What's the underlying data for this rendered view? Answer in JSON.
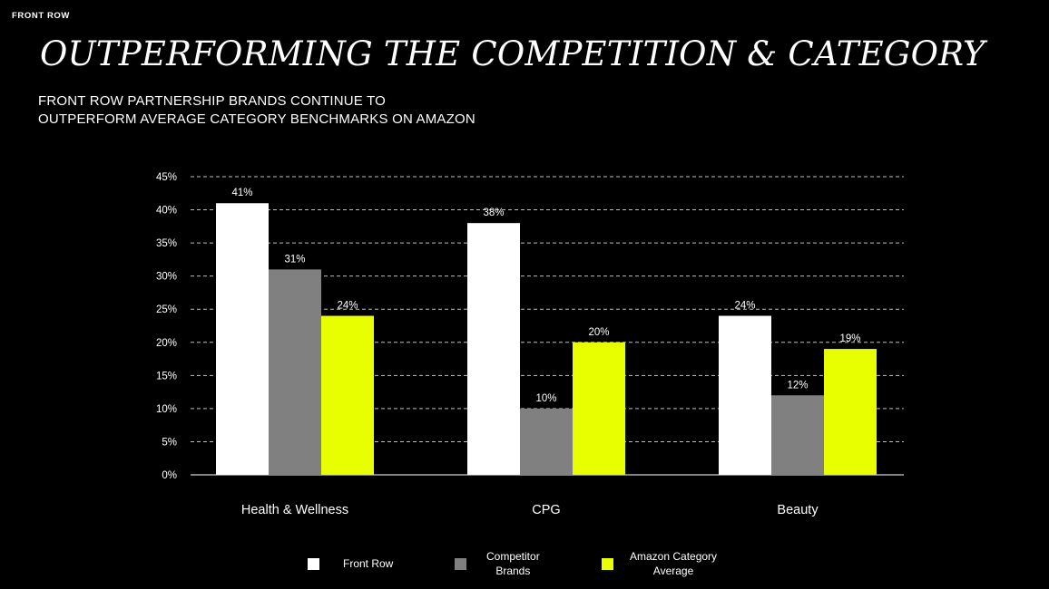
{
  "brand": "FRONT ROW",
  "title": "OUTPERFORMING THE COMPETITION & CATEGORY",
  "subtitle_lines": [
    "FRONT ROW PARTNERSHIP BRANDS CONTINUE TO",
    "OUTPERFORM AVERAGE CATEGORY BENCHMARKS ON AMAZON"
  ],
  "colors": {
    "front_row": "#ffffff",
    "competitor": "#808080",
    "amazon": "#e8ff00",
    "background": "#000000"
  },
  "chart_data": {
    "type": "bar",
    "categories": [
      "Health & Wellness",
      "CPG",
      "Beauty"
    ],
    "series": [
      {
        "name": "Front Row",
        "values": [
          41,
          38,
          24
        ],
        "labels": [
          "41%",
          "38%",
          "24%"
        ]
      },
      {
        "name": "Competitor Brands",
        "values": [
          31,
          10,
          12
        ],
        "labels": [
          "31%",
          "10%",
          "12%"
        ]
      },
      {
        "name": "Amazon Category Average",
        "values": [
          24,
          20,
          19
        ],
        "labels": [
          "24%",
          "20%",
          "19%"
        ]
      }
    ],
    "yticks": [
      "0%",
      "5%",
      "10%",
      "15%",
      "20%",
      "25%",
      "30%",
      "35%",
      "40%",
      "45%"
    ],
    "ylim": [
      0,
      45
    ],
    "grid": "dashed horizontal",
    "legend_position": "bottom"
  },
  "legend": [
    {
      "lines": [
        "Front Row"
      ]
    },
    {
      "lines": [
        "Competitor",
        "Brands"
      ]
    },
    {
      "lines": [
        "Amazon Category",
        "Average"
      ]
    }
  ]
}
